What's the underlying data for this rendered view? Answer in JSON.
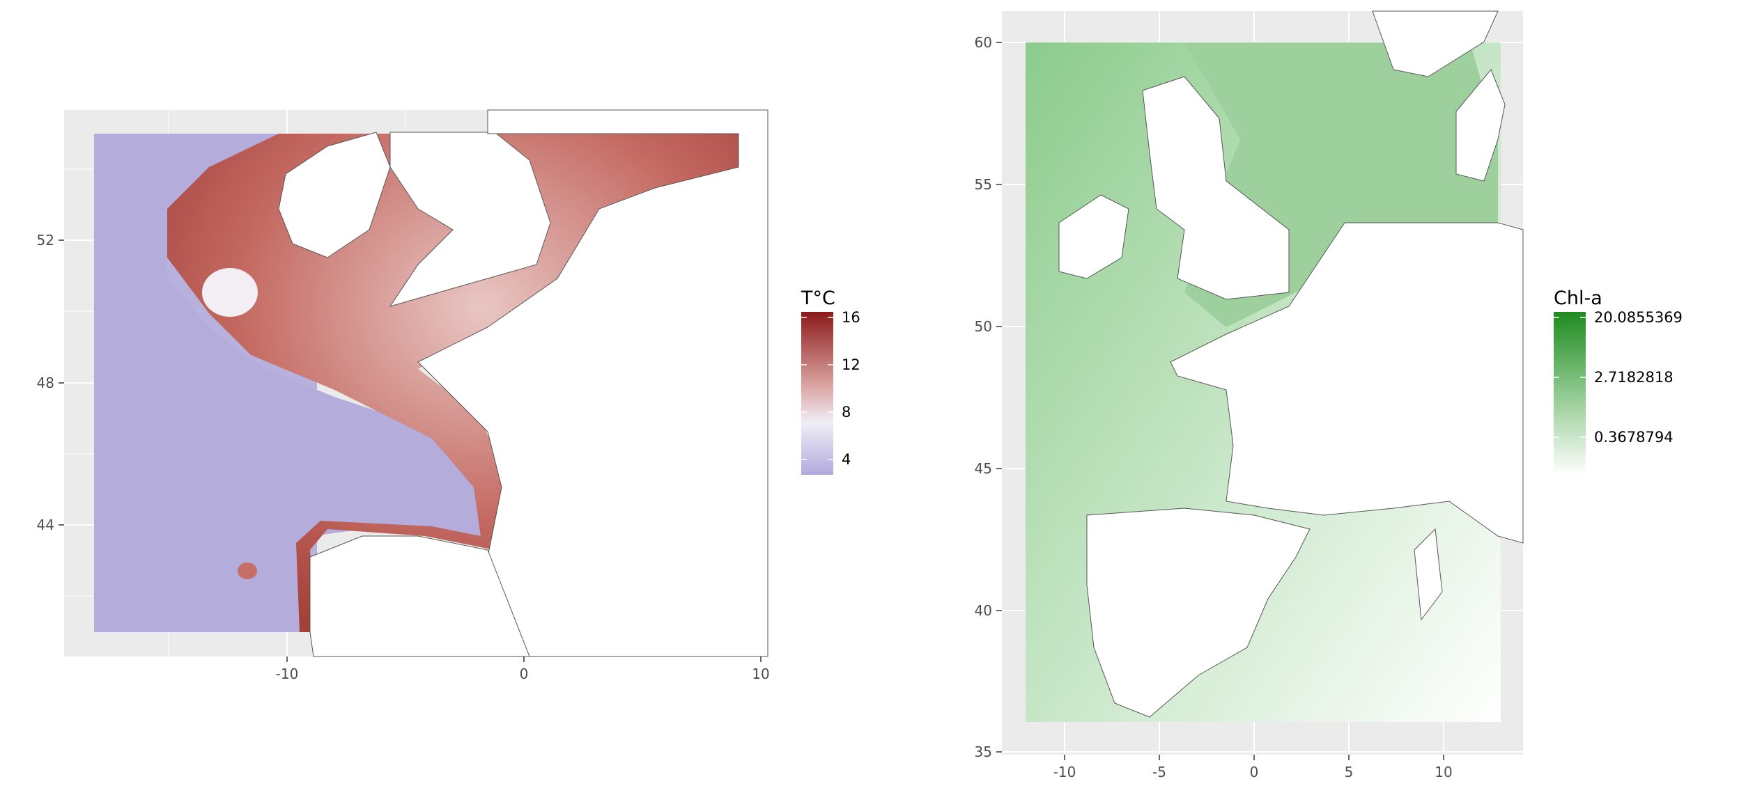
{
  "figure": {
    "maps": [
      {
        "id": "temperature",
        "x_ticks": [
          "-10",
          "0",
          "10"
        ],
        "y_ticks": [
          "52",
          "48",
          "44"
        ],
        "legend": {
          "title": "T°C",
          "labels": [
            "16",
            "12",
            "8",
            "4"
          ],
          "colors": {
            "high": "#8b1a1a",
            "mid": "#f0eef6",
            "low": "#b2a9dc"
          }
        },
        "panel_bg": "#ebebeb"
      },
      {
        "id": "chlorophyll",
        "x_ticks": [
          "-10",
          "-5",
          "0",
          "5",
          "10"
        ],
        "y_ticks": [
          "60",
          "55",
          "50",
          "45",
          "40",
          "35"
        ],
        "legend": {
          "title": "Chl-a",
          "labels": [
            "20.0855369",
            "2.7182818",
            "0.3678794"
          ],
          "colors": {
            "high": "#1f8a1f",
            "low": "#ffffff"
          }
        },
        "panel_bg": "#ebebeb"
      }
    ]
  }
}
